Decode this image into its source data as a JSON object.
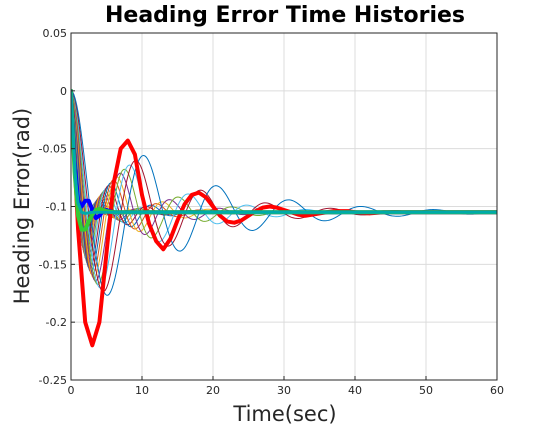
{
  "chart_data": {
    "type": "line",
    "title": "Heading Error Time Histories",
    "xlabel": "Time(sec)",
    "ylabel": "Heading Error(rad)",
    "xlim": [
      0,
      60
    ],
    "ylim": [
      -0.25,
      0.05
    ],
    "xticks": [
      0,
      10,
      20,
      30,
      40,
      50,
      60
    ],
    "xtick_labels": [
      "0",
      "10",
      "20",
      "30",
      "40",
      "50",
      "60"
    ],
    "yticks": [
      0.05,
      0,
      -0.05,
      -0.1,
      -0.15,
      -0.2,
      -0.25
    ],
    "ytick_labels": [
      "0.05",
      "0",
      "-0.05",
      "-0.1",
      "-0.15",
      "-0.2",
      "-0.25"
    ],
    "grid": true,
    "box": true,
    "steady_state_value": -0.105,
    "family": {
      "count": 22,
      "description_of_curves": "family of damped oscillatory responses from 0 settling near -0.105",
      "colors": [
        "#0072BD",
        "#D95319",
        "#EDB120",
        "#7E2F8E",
        "#77AC30",
        "#4DBEEE",
        "#A2142F"
      ],
      "params": {
        "zeta_min": 0.42,
        "zeta_max": 0.12,
        "omega_min": 2.2,
        "omega_max": 0.62
      }
    },
    "series": [
      {
        "name": "",
        "color": "#FF0000",
        "linewidth": 4,
        "x": [
          0,
          1,
          2,
          3,
          4,
          5,
          6,
          7,
          8,
          9,
          10,
          11,
          12,
          13,
          14,
          15,
          16,
          17,
          18,
          19,
          20,
          21,
          22,
          23,
          24,
          25,
          26,
          27,
          28,
          29,
          30,
          31,
          32,
          33,
          34,
          35,
          36,
          37,
          38,
          39,
          40,
          42,
          44,
          46,
          48,
          50,
          52,
          54,
          56,
          58,
          60
        ],
        "y": [
          0,
          -0.12,
          -0.2,
          -0.22,
          -0.2,
          -0.14,
          -0.08,
          -0.05,
          -0.043,
          -0.055,
          -0.09,
          -0.115,
          -0.13,
          -0.137,
          -0.128,
          -0.112,
          -0.098,
          -0.09,
          -0.088,
          -0.092,
          -0.1,
          -0.108,
          -0.113,
          -0.114,
          -0.112,
          -0.108,
          -0.104,
          -0.101,
          -0.1,
          -0.101,
          -0.103,
          -0.105,
          -0.107,
          -0.108,
          -0.107,
          -0.106,
          -0.105,
          -0.104,
          -0.104,
          -0.104,
          -0.105,
          -0.106,
          -0.105,
          -0.105,
          -0.105,
          -0.105,
          -0.105,
          -0.105,
          -0.105,
          -0.105,
          -0.105
        ]
      },
      {
        "name": "",
        "color": "#0000FF",
        "linewidth": 4,
        "x": [
          0,
          0.5,
          1,
          1.5,
          2,
          2.5,
          3,
          3.5,
          4,
          4.5,
          5,
          5.5,
          6,
          7,
          8,
          10,
          15,
          20,
          30,
          40,
          60
        ],
        "y": [
          0,
          -0.06,
          -0.095,
          -0.1,
          -0.095,
          -0.095,
          -0.103,
          -0.11,
          -0.108,
          -0.104,
          -0.103,
          -0.104,
          -0.105,
          -0.105,
          -0.105,
          -0.105,
          -0.105,
          -0.105,
          -0.105,
          -0.105,
          -0.105
        ]
      },
      {
        "name": "",
        "color": "#33CC33",
        "linewidth": 4,
        "x": [
          0,
          0.5,
          1,
          1.5,
          2,
          2.5,
          3,
          3.5,
          4,
          4.5,
          5,
          6,
          7,
          8,
          10,
          15,
          20,
          30,
          40,
          60
        ],
        "y": [
          0,
          -0.07,
          -0.108,
          -0.12,
          -0.12,
          -0.113,
          -0.107,
          -0.103,
          -0.102,
          -0.103,
          -0.104,
          -0.105,
          -0.105,
          -0.105,
          -0.105,
          -0.105,
          -0.105,
          -0.105,
          -0.105,
          -0.105
        ]
      },
      {
        "name": "",
        "color": "#00AAAA",
        "linewidth": 3,
        "x": [
          0,
          0.3,
          0.6,
          1,
          1.5,
          2,
          3,
          5,
          10,
          20,
          40,
          60
        ],
        "y": [
          0,
          -0.04,
          -0.075,
          -0.097,
          -0.105,
          -0.106,
          -0.105,
          -0.105,
          -0.105,
          -0.105,
          -0.105,
          -0.105
        ]
      }
    ]
  }
}
